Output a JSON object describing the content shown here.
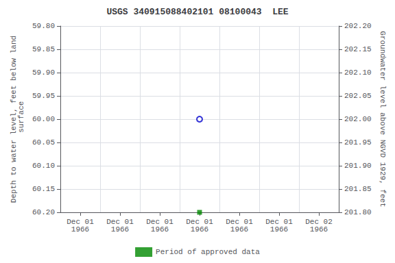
{
  "chart_data": {
    "type": "scatter",
    "title": "USGS 340915088402101 08100043  LEE",
    "y_label": "Depth to water level, feet below land\n surface",
    "y2_label": "Groundwater level above NGVD 1929, feet",
    "categories": [
      "Dec 01\n1966",
      "Dec 01\n1966",
      "Dec 01\n1966",
      "Dec 01\n1966",
      "Dec 01\n1966",
      "Dec 01\n1966",
      "Dec 02\n1966"
    ],
    "series": [
      {
        "color": "#0000cc",
        "marker": "open_circle",
        "values": [
          null,
          null,
          null,
          60.0,
          null,
          null,
          null
        ]
      },
      {
        "name": "Period of approved data",
        "color": "#008800",
        "marker": "square",
        "values": [
          null,
          null,
          null,
          60.2,
          null,
          null,
          null
        ]
      }
    ],
    "ylim": [
      60.2,
      59.8
    ],
    "yticks": [
      {
        "value": 59.8,
        "label": "59.80"
      },
      {
        "value": 59.85,
        "label": "59.85"
      },
      {
        "value": 59.9,
        "label": "59.90"
      },
      {
        "value": 59.95,
        "label": "59.95"
      },
      {
        "value": 60.0,
        "label": "60.00"
      },
      {
        "value": 60.05,
        "label": "60.05"
      },
      {
        "value": 60.1,
        "label": "60.10"
      },
      {
        "value": 60.15,
        "label": "60.15"
      },
      {
        "value": 60.2,
        "label": "60.20"
      }
    ],
    "y2lim": [
      201.8,
      202.2
    ],
    "y2ticks": [
      {
        "value": 201.8,
        "label": "201.80"
      },
      {
        "value": 201.85,
        "label": "201.85"
      },
      {
        "value": 201.9,
        "label": "201.90"
      },
      {
        "value": 201.95,
        "label": "201.95"
      },
      {
        "value": 202.0,
        "label": "202.00"
      },
      {
        "value": 202.05,
        "label": "202.05"
      },
      {
        "value": 202.1,
        "label": "202.10"
      },
      {
        "value": 202.15,
        "label": "202.15"
      },
      {
        "value": 202.2,
        "label": "202.20"
      }
    ],
    "grid": true,
    "legend": "bottom"
  }
}
